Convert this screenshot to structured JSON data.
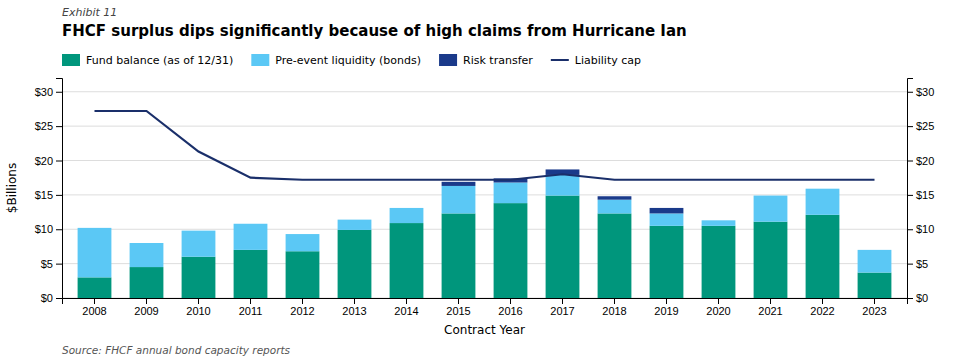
{
  "chart_data": {
    "type": "bar",
    "stacked": true,
    "subtitle": "Exhibit 11",
    "title": "FHCF surplus dips significantly because of high claims from Hurricane Ian",
    "annotations": [
      "Source: FHCF annual bond capacity reports"
    ],
    "x_label": "Contract Year",
    "y_label": "$Billions",
    "categories": [
      "2008",
      "2009",
      "2010",
      "2011",
      "2012",
      "2013",
      "2014",
      "2015",
      "2016",
      "2017",
      "2018",
      "2019",
      "2020",
      "2021",
      "2022",
      "2023"
    ],
    "series": [
      {
        "name": "Fund balance (as of 12/31)",
        "type": "bar",
        "color": "#00967c",
        "values": [
          3.0,
          4.5,
          6.0,
          7.0,
          6.8,
          9.9,
          10.9,
          12.3,
          13.8,
          14.9,
          12.3,
          10.5,
          10.5,
          11.1,
          12.1,
          3.7
        ]
      },
      {
        "name": "Pre-event liquidity (bonds)",
        "type": "bar",
        "color": "#5bc8f5",
        "values": [
          7.2,
          3.5,
          3.8,
          3.8,
          2.5,
          1.5,
          2.2,
          4.0,
          3.0,
          3.0,
          2.0,
          1.8,
          0.8,
          3.8,
          3.8,
          3.3
        ]
      },
      {
        "name": "Risk transfer",
        "type": "bar",
        "color": "#1a3a8a",
        "values": [
          0.0,
          0.0,
          0.0,
          0.0,
          0.0,
          0.0,
          0.0,
          0.6,
          0.6,
          0.8,
          0.5,
          0.8,
          0.0,
          0.0,
          0.0,
          0.0
        ]
      },
      {
        "name": "Liability cap",
        "type": "line",
        "color": "#1a2f6a",
        "values": [
          27.2,
          27.2,
          21.3,
          17.5,
          17.2,
          17.2,
          17.2,
          17.2,
          17.2,
          18.0,
          17.2,
          17.2,
          17.2,
          17.2,
          17.2,
          17.2
        ]
      }
    ],
    "ylim": [
      0,
      32
    ],
    "yticks": [
      {
        "value": 0,
        "label": "$0"
      },
      {
        "value": 5,
        "label": "$5"
      },
      {
        "value": 10,
        "label": "$10"
      },
      {
        "value": 15,
        "label": "$15"
      },
      {
        "value": 20,
        "label": "$20"
      },
      {
        "value": 25,
        "label": "$25"
      },
      {
        "value": 30,
        "label": "$30"
      }
    ],
    "y2lim": [
      0,
      32
    ],
    "y2ticks": [
      {
        "value": 0,
        "label": "$0"
      },
      {
        "value": 5,
        "label": "$5"
      },
      {
        "value": 10,
        "label": "$10"
      },
      {
        "value": 15,
        "label": "$15"
      },
      {
        "value": 20,
        "label": "$20"
      },
      {
        "value": 25,
        "label": "$25"
      },
      {
        "value": 30,
        "label": "$30"
      }
    ],
    "grid": true,
    "legend": "upper left"
  }
}
